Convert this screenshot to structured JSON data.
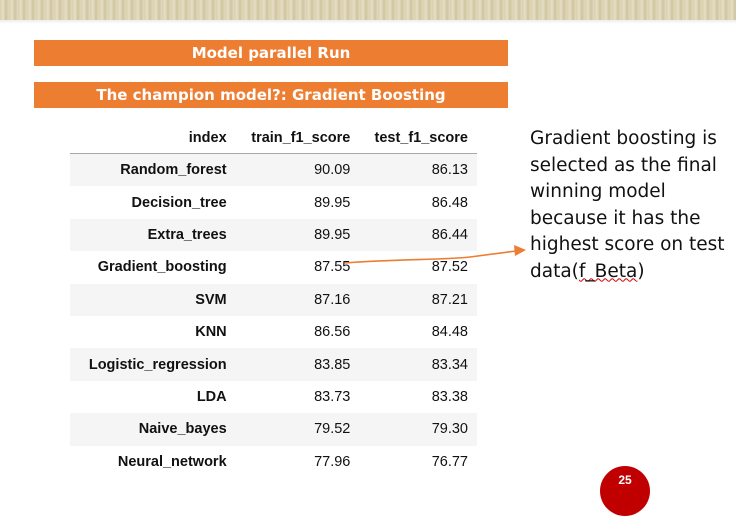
{
  "banners": {
    "title": "Model parallel Run",
    "subtitle": "The champion model?: Gradient Boosting"
  },
  "table": {
    "headers": [
      "index",
      "train_f1_score",
      "test_f1_score"
    ],
    "rows": [
      [
        "Random_forest",
        "90.09",
        "86.13"
      ],
      [
        "Decision_tree",
        "89.95",
        "86.48"
      ],
      [
        "Extra_trees",
        "89.95",
        "86.44"
      ],
      [
        "Gradient_boosting",
        "87.55",
        "87.52"
      ],
      [
        "SVM",
        "87.16",
        "87.21"
      ],
      [
        "KNN",
        "86.56",
        "84.48"
      ],
      [
        "Logistic_regression",
        "83.85",
        "83.34"
      ],
      [
        "LDA",
        "83.73",
        "83.38"
      ],
      [
        "Naive_bayes",
        "79.52",
        "79.30"
      ],
      [
        "Neural_network",
        "77.96",
        "76.77"
      ]
    ]
  },
  "note": {
    "line1": "Gradient boosting is selected as the final winning model because it has the highest score on test data(",
    "marked": "f_Beta",
    "line2": ")"
  },
  "slide_number": "25",
  "colors": {
    "banner": "#ed7d31",
    "arrow": "#ed7d31",
    "slide_badge": "#c00000"
  }
}
